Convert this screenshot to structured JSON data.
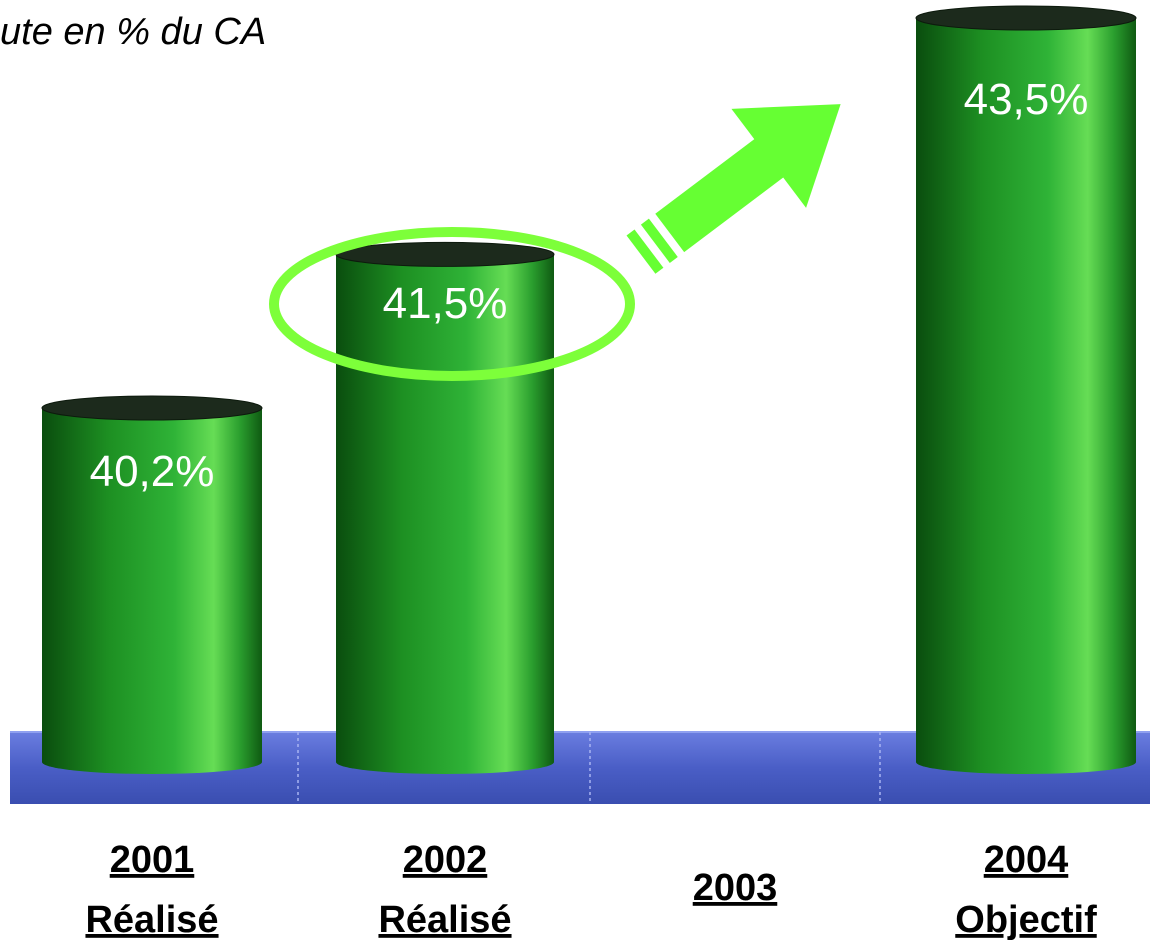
{
  "chart_data": {
    "type": "bar",
    "title": "ute en % du CA",
    "categories": [
      {
        "year": "2001",
        "status": "Réalisé"
      },
      {
        "year": "2002",
        "status": "Réalisé"
      },
      {
        "year": "2003",
        "status": ""
      },
      {
        "year": "2004",
        "status": "Objectif"
      }
    ],
    "values": [
      40.2,
      41.5,
      null,
      43.5
    ],
    "value_labels": [
      "40,2%",
      "41,5%",
      "",
      "43,5%"
    ],
    "highlighted_category": "2002",
    "annotation": "arrow from 2002 toward 2004",
    "xlabel": "",
    "ylabel": "",
    "grid": false,
    "legend": "none",
    "colors": {
      "bar": "#1f9e25",
      "bar_highlight": "#66dd55",
      "bar_dark": "#0a4d0e",
      "base_plane": "#4a5ec6",
      "highlight_outline": "#7dff3a",
      "arrow": "#66ff33",
      "value_text": "#ffffff",
      "category_text": "#000000"
    }
  }
}
